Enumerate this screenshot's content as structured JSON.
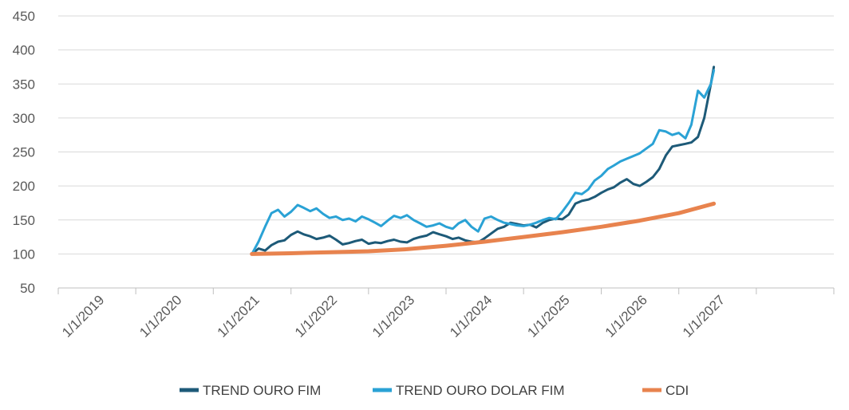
{
  "chart_data": {
    "type": "line",
    "title": "",
    "xlabel": "",
    "ylabel": "",
    "ylim": [
      50,
      450
    ],
    "yticks": [
      50,
      100,
      150,
      200,
      250,
      300,
      350,
      400,
      450
    ],
    "xlim": [
      "2018-01-01",
      "2028-01-01"
    ],
    "xticks": [
      "1/1/2019",
      "1/1/2020",
      "1/1/2021",
      "1/1/2022",
      "1/1/2023",
      "1/1/2024",
      "1/1/2025",
      "1/1/2026",
      "1/1/2027"
    ],
    "grid": "horizontal",
    "legend_position": "bottom",
    "series": [
      {
        "name": "TREND OURO FIM",
        "color": "#1d5a78",
        "x": [
          "2020-07-01",
          "2020-08-01",
          "2020-09-01",
          "2020-10-01",
          "2020-11-01",
          "2020-12-01",
          "2021-01-01",
          "2021-02-01",
          "2021-03-01",
          "2021-04-01",
          "2021-05-01",
          "2021-06-01",
          "2021-07-01",
          "2021-08-01",
          "2021-09-01",
          "2021-10-01",
          "2021-11-01",
          "2021-12-01",
          "2022-01-01",
          "2022-02-01",
          "2022-03-01",
          "2022-04-01",
          "2022-05-01",
          "2022-06-01",
          "2022-07-01",
          "2022-08-01",
          "2022-09-01",
          "2022-10-01",
          "2022-11-01",
          "2022-12-01",
          "2023-01-01",
          "2023-02-01",
          "2023-03-01",
          "2023-04-01",
          "2023-05-01",
          "2023-06-01",
          "2023-07-01",
          "2023-08-01",
          "2023-09-01",
          "2023-10-01",
          "2023-11-01",
          "2023-12-01",
          "2024-01-01",
          "2024-02-01",
          "2024-03-01",
          "2024-04-01",
          "2024-05-01",
          "2024-06-01",
          "2024-07-01",
          "2024-08-01",
          "2024-09-01",
          "2024-10-01",
          "2024-11-01",
          "2024-12-01",
          "2025-01-01",
          "2025-02-01",
          "2025-03-01",
          "2025-04-01",
          "2025-05-01",
          "2025-06-01",
          "2025-07-01",
          "2025-08-01",
          "2025-09-01",
          "2025-10-01",
          "2025-11-01",
          "2025-12-01",
          "2026-01-01",
          "2026-02-01",
          "2026-03-01",
          "2026-04-01",
          "2026-05-01",
          "2026-06-01",
          "2026-06-15"
        ],
        "y": [
          100,
          108,
          105,
          113,
          118,
          120,
          128,
          133,
          129,
          126,
          122,
          124,
          127,
          121,
          114,
          116,
          119,
          121,
          115,
          117,
          116,
          119,
          121,
          118,
          117,
          122,
          125,
          127,
          132,
          129,
          126,
          122,
          124,
          120,
          118,
          117,
          123,
          130,
          137,
          140,
          146,
          144,
          142,
          143,
          139,
          146,
          150,
          152,
          151,
          158,
          174,
          178,
          180,
          184,
          190,
          195,
          198,
          205,
          210,
          203,
          200,
          206,
          213,
          225,
          245,
          258,
          260,
          262,
          264,
          272,
          300,
          350,
          375
        ]
      },
      {
        "name": "TREND OURO DOLAR FIM",
        "color": "#2aa2d5",
        "x": [
          "2020-07-01",
          "2020-08-01",
          "2020-09-01",
          "2020-10-01",
          "2020-11-01",
          "2020-12-01",
          "2021-01-01",
          "2021-02-01",
          "2021-03-01",
          "2021-04-01",
          "2021-05-01",
          "2021-06-01",
          "2021-07-01",
          "2021-08-01",
          "2021-09-01",
          "2021-10-01",
          "2021-11-01",
          "2021-12-01",
          "2022-01-01",
          "2022-02-01",
          "2022-03-01",
          "2022-04-01",
          "2022-05-01",
          "2022-06-01",
          "2022-07-01",
          "2022-08-01",
          "2022-09-01",
          "2022-10-01",
          "2022-11-01",
          "2022-12-01",
          "2023-01-01",
          "2023-02-01",
          "2023-03-01",
          "2023-04-01",
          "2023-05-01",
          "2023-06-01",
          "2023-07-01",
          "2023-08-01",
          "2023-09-01",
          "2023-10-01",
          "2023-11-01",
          "2023-12-01",
          "2024-01-01",
          "2024-02-01",
          "2024-03-01",
          "2024-04-01",
          "2024-05-01",
          "2024-06-01",
          "2024-07-01",
          "2024-08-01",
          "2024-09-01",
          "2024-10-01",
          "2024-11-01",
          "2024-12-01",
          "2025-01-01",
          "2025-02-01",
          "2025-03-01",
          "2025-04-01",
          "2025-05-01",
          "2025-06-01",
          "2025-07-01",
          "2025-08-01",
          "2025-09-01",
          "2025-10-01",
          "2025-11-01",
          "2025-12-01",
          "2026-01-01",
          "2026-02-01",
          "2026-03-01",
          "2026-04-01",
          "2026-05-01",
          "2026-06-01",
          "2026-06-15"
        ],
        "y": [
          100,
          118,
          140,
          160,
          165,
          155,
          162,
          172,
          168,
          163,
          167,
          159,
          153,
          155,
          150,
          152,
          148,
          155,
          151,
          146,
          141,
          149,
          156,
          153,
          157,
          150,
          145,
          140,
          142,
          145,
          140,
          137,
          145,
          150,
          140,
          133,
          152,
          155,
          150,
          146,
          144,
          142,
          141,
          143,
          146,
          150,
          153,
          151,
          162,
          175,
          190,
          188,
          195,
          208,
          215,
          225,
          230,
          236,
          240,
          244,
          248,
          255,
          262,
          282,
          280,
          275,
          278,
          270,
          290,
          340,
          330,
          350,
          370
        ]
      },
      {
        "name": "CDI",
        "color": "#e8834e",
        "x": [
          "2020-07-01",
          "2021-01-01",
          "2021-07-01",
          "2022-01-01",
          "2022-07-01",
          "2023-01-01",
          "2023-07-01",
          "2024-01-01",
          "2024-07-01",
          "2025-01-01",
          "2025-07-01",
          "2026-01-01",
          "2026-06-15"
        ],
        "y": [
          100,
          101,
          102.5,
          104,
          107,
          112,
          118,
          125,
          132,
          140,
          149,
          160,
          174
        ]
      }
    ]
  }
}
